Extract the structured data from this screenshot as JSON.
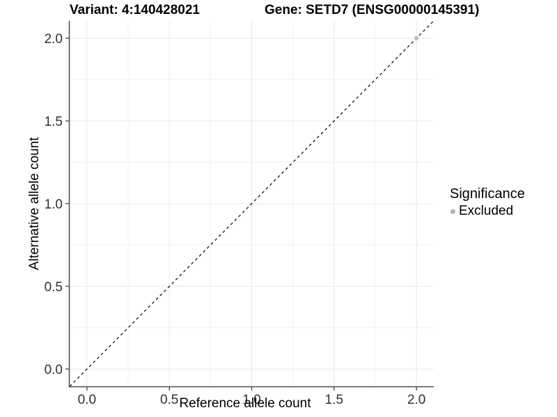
{
  "title": {
    "variant": "Variant: 4:140428021",
    "gene": "Gene: SETD7 (ENSG00000145391)"
  },
  "legend": {
    "title": "Significance",
    "items": [
      {
        "label": "Excluded",
        "color": "#b5b5b5"
      }
    ]
  },
  "colors": {
    "background": "#ffffff",
    "grid_major": "#e8e8e8",
    "grid_minor": "#f3f3f3",
    "axis_line": "#4a4a4a",
    "tick_mark": "#333333",
    "tick_label": "#303030",
    "reference_line": "#000000",
    "point": "#bdbdbd"
  },
  "chart_data": {
    "type": "scatter",
    "title": "Variant: 4:140428021    Gene: SETD7 (ENSG00000145391)",
    "xlabel": "Reference allele count",
    "ylabel": "Alternative allele count",
    "xlim": [
      -0.105,
      2.105
    ],
    "ylim": [
      -0.105,
      2.105
    ],
    "x_tick_values": [
      0,
      0.5,
      1,
      1.5,
      2
    ],
    "x_tick_labels": [
      "0.0",
      "0.5",
      "1.0",
      "1.5",
      "2.0"
    ],
    "y_tick_values": [
      0,
      0.5,
      1,
      1.5,
      2
    ],
    "y_tick_labels": [
      "0.0",
      "0.5",
      "1.0",
      "1.5",
      "2.0"
    ],
    "minor_tick_values": [
      0.25,
      0.75,
      1.25,
      1.75
    ],
    "grid": "major+minor",
    "legend_position": "right",
    "legend_title": "Significance",
    "series": [
      {
        "name": "Excluded",
        "color": "#bdbdbd",
        "points": [
          {
            "x": 2,
            "y": 2
          }
        ]
      }
    ],
    "reference_line": {
      "kind": "identity",
      "from": -0.105,
      "to": 2.105,
      "style": "dashed",
      "color": "#000000"
    }
  }
}
